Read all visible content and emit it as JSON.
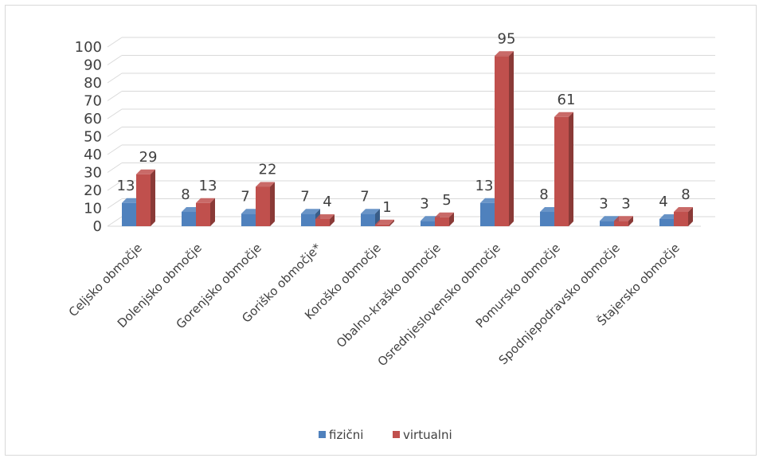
{
  "chart_data": {
    "type": "bar",
    "categories": [
      "Celjsko območje",
      "Dolenjsko območje",
      "Gorenjsko območje",
      "Goriško območje*",
      "Koroško območje",
      "Obalno-kraško območje",
      "Osrednjeslovensko območje",
      "Pomursko območje",
      "Spodnjepodravsko območje",
      "Štajersko območje"
    ],
    "series": [
      {
        "name": "fizični",
        "values": [
          13,
          8,
          7,
          7,
          7,
          3,
          13,
          8,
          3,
          4
        ],
        "color": "#4f81bd"
      },
      {
        "name": "virtualni",
        "values": [
          29,
          13,
          22,
          4,
          1,
          5,
          95,
          61,
          3,
          8
        ],
        "color": "#c0504d"
      }
    ],
    "yticks": [
      "0",
      "10",
      "20",
      "30",
      "40",
      "50",
      "60",
      "70",
      "80",
      "90",
      "100"
    ],
    "ylim": [
      0,
      100
    ],
    "grid": true,
    "legend": "bottom",
    "title": "",
    "xlabel": "",
    "ylabel": ""
  }
}
